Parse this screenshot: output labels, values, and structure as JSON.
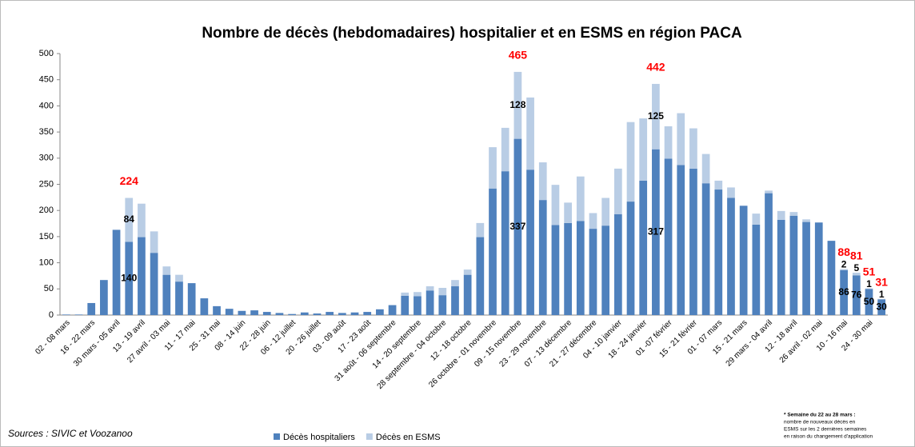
{
  "chart_data": {
    "type": "stacked_bar",
    "title": "Nombre de décès (hebdomadaires) hospitalier et en ESMS en région PACA",
    "categories": [
      "02 - 08 mars",
      null,
      "16 - 22 mars",
      null,
      "30 mars - 05 avril",
      null,
      "13 - 19 avril",
      null,
      "27 avril - 03 mai",
      null,
      "11 - 17 mai",
      null,
      "25 - 31 mai",
      null,
      "08 - 14 juin",
      null,
      "22 - 28 juin",
      null,
      "06 - 12 juillet",
      null,
      "20 - 26 juillet",
      null,
      "03 - 09 août",
      null,
      "17 - 23 août",
      null,
      "31 août - 06 septembre",
      null,
      "14 - 20 septembre",
      null,
      "28 septembre - 04 octobre",
      null,
      "12 - 18 octobre",
      null,
      "26 octobre - 01 novembre",
      null,
      "09 - 15 novembre",
      null,
      "23 - 29 novembre",
      null,
      "07 - 13 décembre",
      null,
      "21 - 27 décembre",
      null,
      "04 - 10 janvier",
      null,
      "18 - 24 janvier",
      null,
      "01 -07 février",
      null,
      "15 - 21 février",
      null,
      "01 - 07 mars",
      null,
      "15 - 21 mars",
      null,
      "29 mars - 04 avril",
      null,
      "12 - 18 avril",
      null,
      "26 avril - 02 mai",
      null,
      "10 - 16 mai",
      null,
      "24 - 30 mai",
      null
    ],
    "series": [
      {
        "name": "Décès hospitaliers",
        "color": "#4f81bd",
        "values": [
          1,
          1,
          23,
          67,
          163,
          140,
          149,
          119,
          77,
          64,
          61,
          32,
          17,
          12,
          8,
          9,
          6,
          4,
          2,
          5,
          3,
          6,
          4,
          5,
          6,
          11,
          19,
          37,
          36,
          47,
          38,
          55,
          77,
          149,
          242,
          275,
          337,
          278,
          220,
          172,
          176,
          180,
          165,
          171,
          193,
          217,
          257,
          317,
          299,
          287,
          280,
          252,
          240,
          224,
          209,
          173,
          233,
          182,
          190,
          178,
          177,
          142,
          86,
          76,
          50,
          30
        ]
      },
      {
        "name": "Décès en ESMS",
        "color": "#b9cde5",
        "values": [
          0,
          0,
          0,
          0,
          0,
          84,
          64,
          41,
          16,
          13,
          0,
          0,
          0,
          0,
          0,
          0,
          0,
          0,
          0,
          0,
          0,
          0,
          0,
          0,
          0,
          0,
          0,
          6,
          8,
          8,
          14,
          12,
          10,
          27,
          79,
          83,
          128,
          138,
          72,
          77,
          39,
          85,
          30,
          53,
          87,
          152,
          119,
          125,
          62,
          99,
          77,
          56,
          17,
          20,
          0,
          21,
          5,
          17,
          7,
          5,
          0,
          0,
          2,
          5,
          1,
          1
        ]
      }
    ],
    "data_labels": [
      5,
      36,
      47,
      62,
      63,
      64,
      65
    ],
    "totals": [
      {
        "index": 5,
        "value": 224
      },
      {
        "index": 36,
        "value": 465
      },
      {
        "index": 47,
        "value": 442
      },
      {
        "index": 62,
        "value": 88
      },
      {
        "index": 63,
        "value": 81
      },
      {
        "index": 64,
        "value": 51
      },
      {
        "index": 65,
        "value": 31
      }
    ],
    "ylim": [
      0,
      500
    ],
    "yticks": [
      0,
      50,
      100,
      150,
      200,
      250,
      300,
      350,
      400,
      450,
      500
    ],
    "grid": false,
    "source": "Sources : SIVIC et Voozanoo",
    "note": [
      "* Semaine du 22 au 28 mars :",
      "nombre de  nouveaux décès en",
      "ESMS sur les 2 dernières semaines",
      "en raison du changement d'application"
    ]
  }
}
